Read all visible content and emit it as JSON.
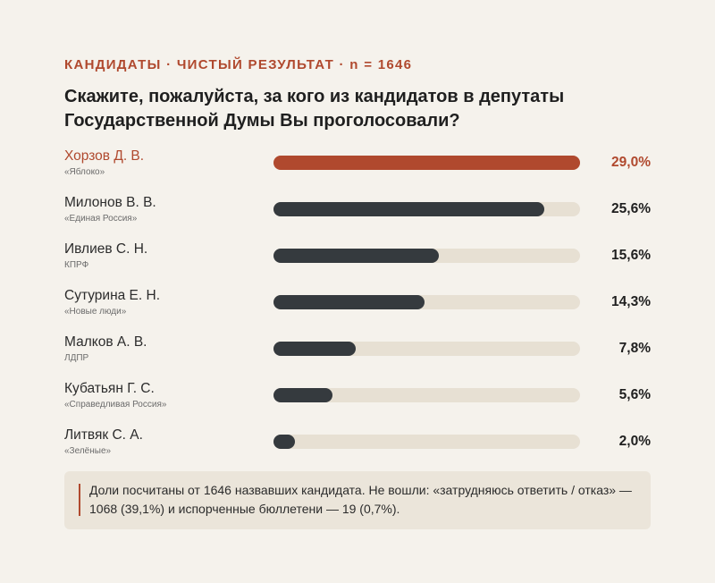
{
  "header": {
    "kicker": "КАНДИДАТЫ · ЧИСТЫЙ РЕЗУЛЬТАТ · n = 1646",
    "title": "Скажите, пожалуйста, за кого из кандидатов в депутаты Государственной Думы Вы проголосовали?"
  },
  "colors": {
    "accent": "#b0492e",
    "bar": "#353a3e",
    "track": "#e7e0d3",
    "background": "#f5f2ec"
  },
  "chart_data": {
    "type": "bar",
    "orientation": "horizontal",
    "categories": [
      "Хорзов Д. В.",
      "Милонов В. В.",
      "Ивлиев С. Н.",
      "Сутурина Е. Н.",
      "Малков А. В.",
      "Кубатьян Г. С.",
      "Литвяк С. А."
    ],
    "parties": [
      "«Яблоко»",
      "«Единая Россия»",
      "КПРФ",
      "«Новые люди»",
      "ЛДПР",
      "«Справедливая Россия»",
      "«Зелёные»"
    ],
    "values": [
      29.0,
      25.6,
      15.6,
      14.3,
      7.8,
      5.6,
      2.0
    ],
    "labels": [
      "29,0%",
      "25,6%",
      "15,6%",
      "14,3%",
      "7,8%",
      "5,6%",
      "2,0%"
    ],
    "highlight_index": 0,
    "xlim": [
      0,
      29
    ],
    "title": "Скажите, пожалуйста, за кого из кандидатов в депутаты Государственной Думы Вы проголосовали?"
  },
  "note": {
    "text": "Доли посчитаны от 1646 назвавших кандидата. Не вошли: «затрудняюсь ответить / отказ» — 1068 (39,1%) и испорченные бюллетени — 19 (0,7%)."
  }
}
